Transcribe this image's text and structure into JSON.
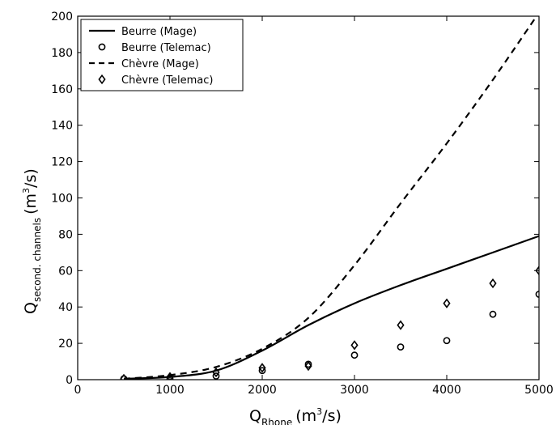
{
  "chart_data": {
    "type": "line",
    "xlabel": {
      "main": "Q",
      "sub": "Rhone",
      "unit_pre": "(m",
      "unit_sup": "3",
      "unit_post": "/s)"
    },
    "ylabel": {
      "main": "Q",
      "sub": "second. channels",
      "unit_pre": "(m",
      "unit_sup": "3",
      "unit_post": "/s)"
    },
    "xlim": [
      0,
      5000
    ],
    "ylim": [
      0,
      200
    ],
    "xticks": [
      0,
      1000,
      2000,
      3000,
      4000,
      5000
    ],
    "yticks": [
      0,
      20,
      40,
      60,
      80,
      100,
      120,
      140,
      160,
      180,
      200
    ],
    "grid": false,
    "legend_position": "top-left",
    "series": [
      {
        "name": "Beurre (Mage)",
        "kind": "line",
        "style": "solid",
        "x": [
          500,
          1000,
          1500,
          2000,
          2500,
          3000,
          3500,
          4000,
          4500,
          5000
        ],
        "values": [
          0.5,
          1.5,
          5,
          16,
          30,
          42,
          52,
          61,
          70,
          79
        ]
      },
      {
        "name": "Beurre (Telemac)",
        "kind": "marker",
        "marker": "circle",
        "x": [
          500,
          1000,
          1500,
          2000,
          2500,
          3000,
          3500,
          4000,
          4500,
          5000
        ],
        "values": [
          0.5,
          0.5,
          2,
          5,
          8.5,
          13.5,
          18,
          21.5,
          36,
          47
        ]
      },
      {
        "name": "Chèvre (Mage)",
        "kind": "line",
        "style": "dashed",
        "x": [
          500,
          1000,
          1500,
          2000,
          2500,
          3000,
          3500,
          4000,
          4500,
          5000
        ],
        "values": [
          0.5,
          2.5,
          7,
          17,
          34,
          63,
          97,
          130,
          165,
          202
        ]
      },
      {
        "name": "Chèvre (Telemac)",
        "kind": "marker",
        "marker": "diamond",
        "x": [
          500,
          1000,
          1500,
          2000,
          2500,
          3000,
          3500,
          4000,
          4500,
          5000
        ],
        "values": [
          0.5,
          1.5,
          4,
          6.5,
          7.5,
          19,
          30,
          42,
          53,
          60
        ]
      }
    ]
  }
}
